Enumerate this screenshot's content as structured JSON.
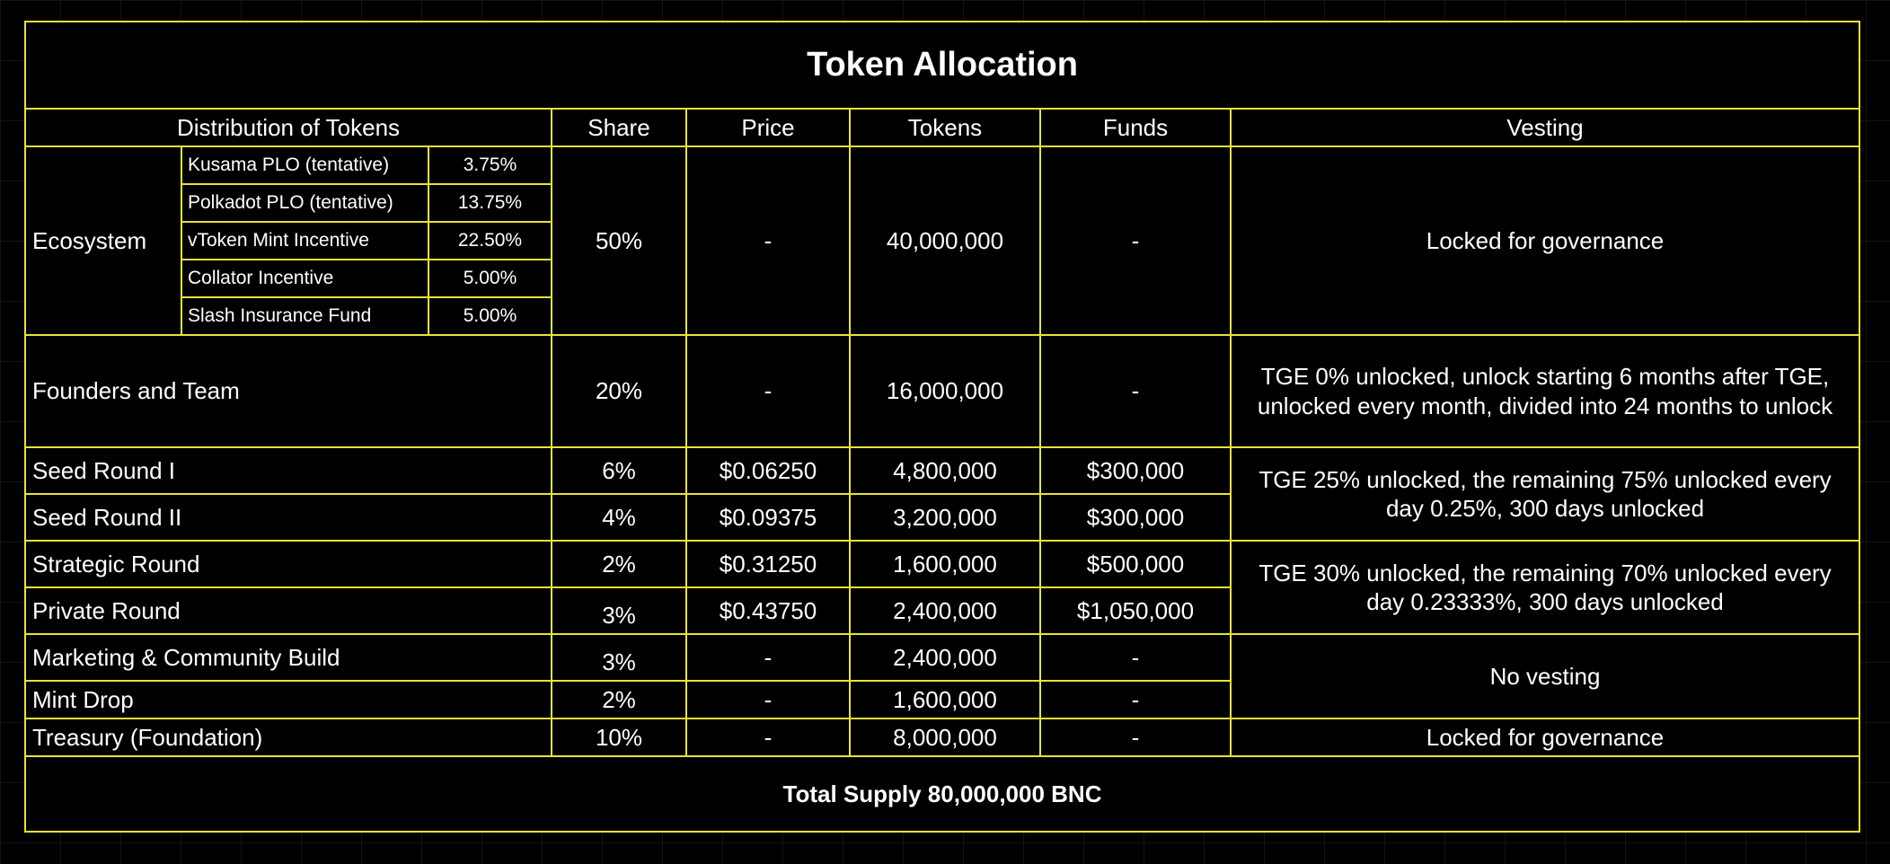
{
  "title": "Token Allocation",
  "headers": {
    "distribution": "Distribution of Tokens",
    "share": "Share",
    "price": "Price",
    "tokens": "Tokens",
    "funds": "Funds",
    "vesting": "Vesting"
  },
  "ecosystem": {
    "name": "Ecosystem",
    "share": "50%",
    "price": "-",
    "tokens": "40,000,000",
    "funds": "-",
    "vesting": "Locked for governance",
    "subs": [
      {
        "name": "Kusama PLO (tentative)",
        "pct": "3.75%"
      },
      {
        "name": "Polkadot PLO (tentative)",
        "pct": "13.75%"
      },
      {
        "name": "vToken Mint Incentive",
        "pct": "22.50%"
      },
      {
        "name": "Collator Incentive",
        "pct": "5.00%"
      },
      {
        "name": "Slash Insurance Fund",
        "pct": "5.00%"
      }
    ]
  },
  "rows": [
    {
      "name": "Founders and Team",
      "share": "20%",
      "price": "-",
      "tokens": "16,000,000",
      "funds": "-"
    },
    {
      "name": "Seed Round I",
      "share": "6%",
      "price": "$0.06250",
      "tokens": "4,800,000",
      "funds": "$300,000"
    },
    {
      "name": "Seed Round II",
      "share": "4%",
      "price": "$0.09375",
      "tokens": "3,200,000",
      "funds": "$300,000"
    },
    {
      "name": "Strategic Round",
      "share": "2%",
      "price": "$0.31250",
      "tokens": "1,600,000",
      "funds": "$500,000"
    },
    {
      "name": "Private Round",
      "share": "3%",
      "price": "$0.43750",
      "tokens": "2,400,000",
      "funds": "$1,050,000"
    },
    {
      "name": "Marketing & Community Build",
      "share": "3%",
      "price": "-",
      "tokens": "2,400,000",
      "funds": "-"
    },
    {
      "name": "Mint Drop",
      "share": "2%",
      "price": "-",
      "tokens": "1,600,000",
      "funds": "-"
    },
    {
      "name": "Treasury (Foundation)",
      "share": "10%",
      "price": "-",
      "tokens": "8,000,000",
      "funds": "-"
    }
  ],
  "vesting": {
    "founders_line1": "TGE 0% unlocked, unlock starting 6 months after TGE,",
    "founders_line2": "unlocked every month, divided into 24 months to unlock",
    "seed_line1": "TGE 25% unlocked, the remaining 75% unlocked every",
    "seed_line2": "day 0.25%, 300 days unlocked",
    "strategic_line1": "TGE 30% unlocked, the remaining 70% unlocked every",
    "strategic_line2": "day 0.23333%, 300 days unlocked",
    "marketing": "No vesting",
    "treasury": "Locked for governance"
  },
  "total": "Total Supply 80,000,000 BNC",
  "colors": {
    "background": "#000000",
    "border": "#e8e33a",
    "text": "#ffffff"
  }
}
